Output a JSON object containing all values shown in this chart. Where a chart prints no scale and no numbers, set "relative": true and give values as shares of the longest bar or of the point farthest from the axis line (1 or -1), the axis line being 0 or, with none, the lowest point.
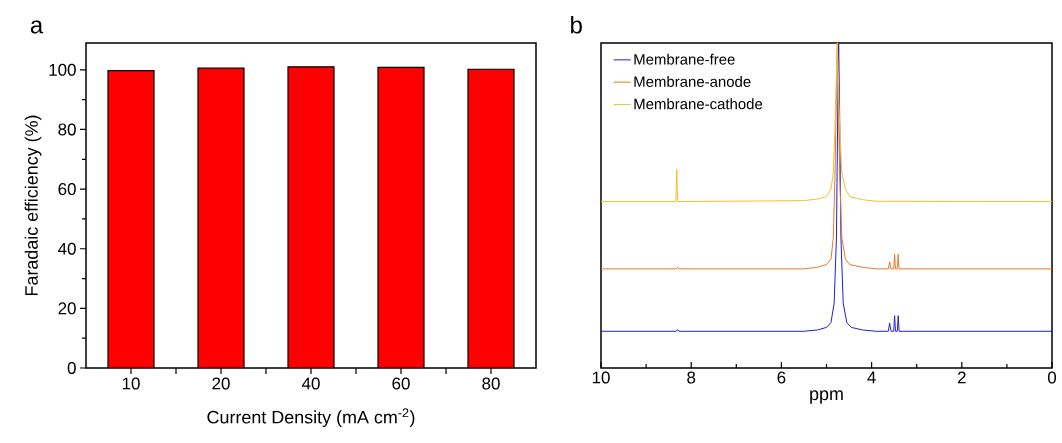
{
  "chart_data": [
    {
      "type": "bar",
      "title": "a",
      "xlabel": "Current Density (mA cm$^{-2}$)",
      "ylabel": "Faradaic efficiency (%)",
      "categories": [
        "10",
        "20",
        "40",
        "60",
        "80"
      ],
      "values": [
        99.7,
        100.6,
        101,
        100.8,
        100.2
      ],
      "color": "#ff0000",
      "ylim": [
        0,
        109
      ],
      "yticks": [
        0,
        20,
        40,
        60,
        80,
        100
      ],
      "grid": false
    },
    {
      "type": "line",
      "title": "b",
      "xlabel": "ppm",
      "relative": true,
      "xlim": [
        10,
        0
      ],
      "xticks": [
        10,
        8,
        6,
        4,
        2,
        0
      ],
      "legend": "top left",
      "marker": "none",
      "grid": false,
      "series": [
        {
          "name": "Membrane-free",
          "color": "#1f1fdc",
          "x": [
            10,
            8.33,
            8.3,
            8.27,
            5.5,
            5.2,
            5.0,
            4.9,
            4.83,
            4.78,
            4.75,
            4.73,
            4.71,
            4.68,
            4.63,
            4.55,
            4.45,
            4.2,
            3.9,
            3.63,
            3.6,
            3.57,
            3.51,
            3.49,
            3.47,
            3.43,
            3.41,
            3.39,
            0
          ],
          "values": [
            0.113,
            0.113,
            0.118,
            0.113,
            0.113,
            0.117,
            0.125,
            0.14,
            0.2,
            0.4,
            0.8,
            1.0,
            0.8,
            0.4,
            0.2,
            0.14,
            0.125,
            0.117,
            0.113,
            0.113,
            0.138,
            0.113,
            0.113,
            0.161,
            0.113,
            0.113,
            0.161,
            0.113,
            0.113
          ]
        },
        {
          "name": "Membrane-anode",
          "color": "#e8772e",
          "x": [
            10,
            8.33,
            8.3,
            8.27,
            5.5,
            5.2,
            5.0,
            4.9,
            4.85,
            4.81,
            4.78,
            4.76,
            4.74,
            4.71,
            4.66,
            4.58,
            4.48,
            4.2,
            3.9,
            3.63,
            3.6,
            3.57,
            3.51,
            3.49,
            3.47,
            3.43,
            3.41,
            3.39,
            0
          ],
          "values": [
            0.305,
            0.305,
            0.31,
            0.305,
            0.305,
            0.31,
            0.318,
            0.335,
            0.4,
            0.6,
            0.85,
            1.0,
            0.85,
            0.6,
            0.4,
            0.335,
            0.318,
            0.31,
            0.305,
            0.305,
            0.327,
            0.305,
            0.305,
            0.35,
            0.305,
            0.305,
            0.35,
            0.305,
            0.305
          ]
        },
        {
          "name": "Membrane-cathode",
          "color": "#f2c12e",
          "x": [
            10,
            8.34,
            8.32,
            8.3,
            5.5,
            5.2,
            5.0,
            4.9,
            4.85,
            4.81,
            4.78,
            4.76,
            4.74,
            4.71,
            4.66,
            4.58,
            4.48,
            4.2,
            3.9,
            0
          ],
          "values": [
            0.512,
            0.512,
            0.611,
            0.512,
            0.515,
            0.52,
            0.527,
            0.55,
            0.6,
            0.75,
            0.9,
            1.0,
            0.9,
            0.75,
            0.6,
            0.55,
            0.527,
            0.518,
            0.513,
            0.512
          ]
        }
      ]
    }
  ]
}
